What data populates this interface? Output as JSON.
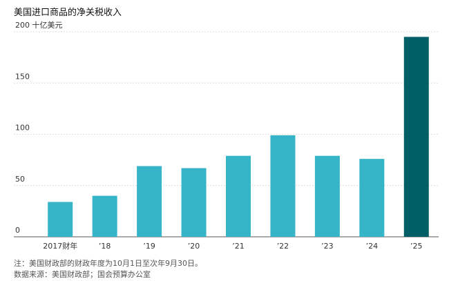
{
  "chart_data": {
    "type": "bar",
    "title": "美国进口商品的净关税收入",
    "categories": [
      "2017财年",
      "’18",
      "’19",
      "’20",
      "’21",
      "’22",
      "’23",
      "’24",
      "’25"
    ],
    "values": [
      34,
      40,
      69,
      67,
      79,
      99,
      79,
      76,
      195
    ],
    "colors": [
      "#36b5c9",
      "#36b5c9",
      "#36b5c9",
      "#36b5c9",
      "#36b5c9",
      "#36b5c9",
      "#36b5c9",
      "#36b5c9",
      "#005f66"
    ],
    "ylim": [
      0,
      200
    ],
    "yticks": [
      0,
      50,
      100,
      150,
      {
        "value": 200,
        "label": "200 十亿美元"
      }
    ],
    "grid": true,
    "note": "注：美国财政部的财政年度为10月1日至次年9月30日。",
    "source": "数据来源：美国财政部；国会预算办公室"
  }
}
